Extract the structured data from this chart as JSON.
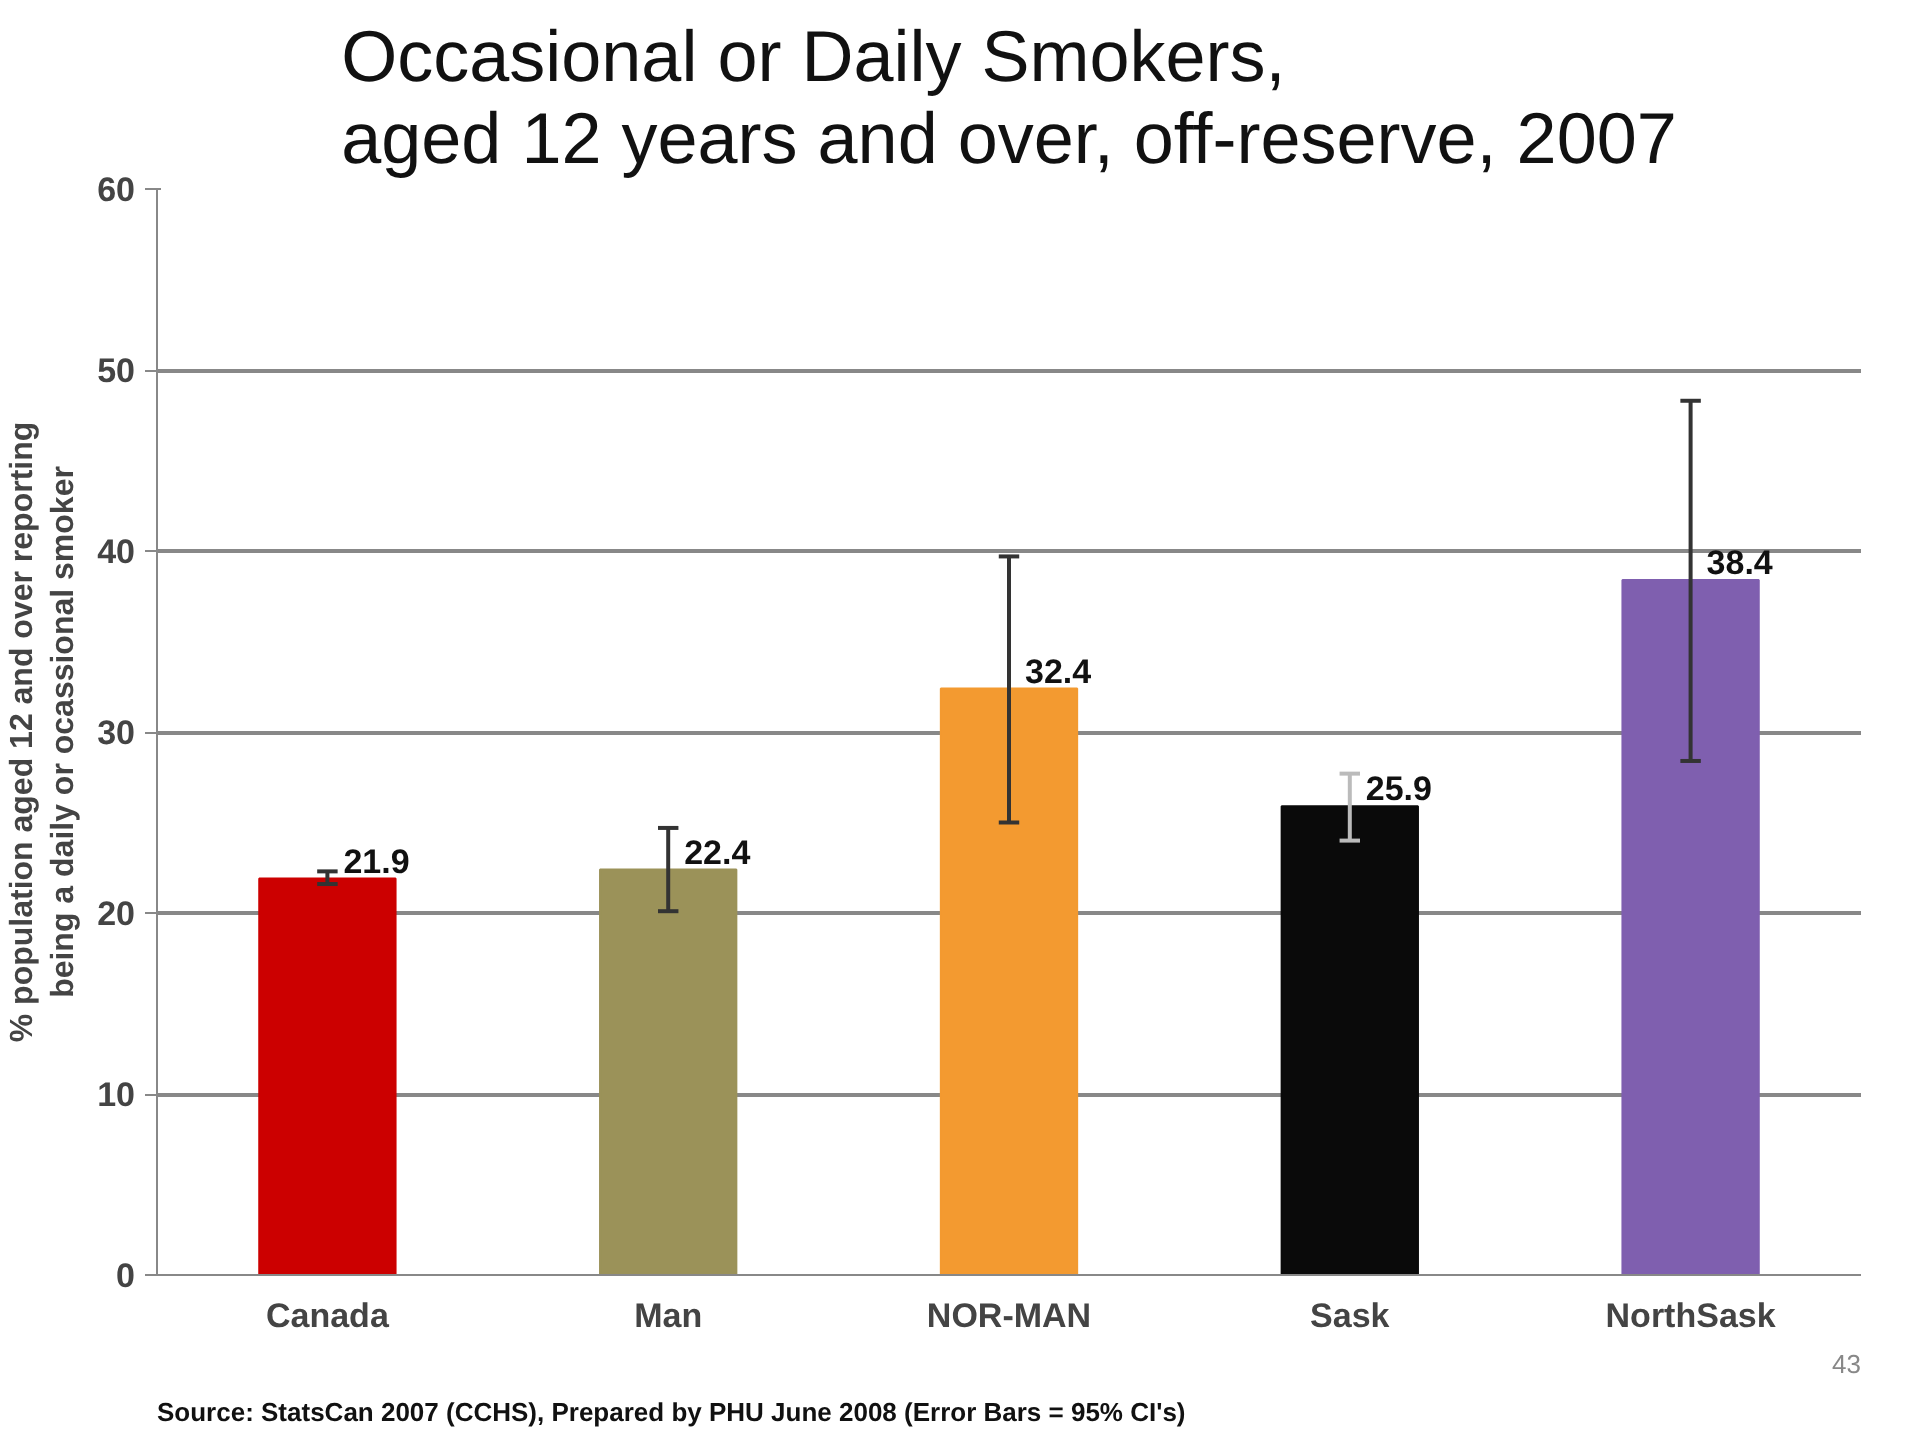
{
  "chart_data": {
    "type": "bar",
    "title": "Occasional or Daily Smokers,\naged 12 years and over, off-reserve, 2007",
    "ylabel": "% population aged 12 and over reporting\nbeing a daily or ocassional smoker",
    "categories": [
      "Canada",
      "Man",
      "NOR-MAN",
      "Sask",
      "NorthSask"
    ],
    "values": [
      21.9,
      22.4,
      32.4,
      25.9,
      38.4
    ],
    "colors": [
      "#cc0000",
      "#9b9259",
      "#f39a30",
      "#0a0a0a",
      "#7f5faf"
    ],
    "errors": [
      [
        21.6,
        22.3
      ],
      [
        20.1,
        24.7
      ],
      [
        25.0,
        39.7
      ],
      [
        24.0,
        27.7
      ],
      [
        28.4,
        48.3
      ]
    ],
    "data_labels": true,
    "ylim": [
      0,
      60
    ],
    "yticks": [
      0,
      10,
      20,
      30,
      40,
      50,
      60
    ],
    "grid": "y",
    "annotations": [
      "43",
      "Source: StatsCan 2007 (CCHS), Prepared by PHU June 2008 (Error Bars = 95% CI's)"
    ]
  }
}
